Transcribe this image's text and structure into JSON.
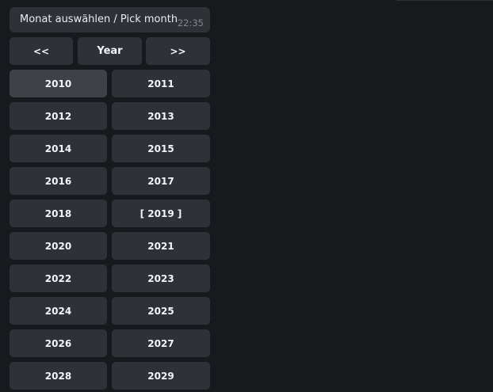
{
  "message": {
    "text": "Monat auswählen / Pick month",
    "time": "22:35"
  },
  "nav": {
    "prev": "<<",
    "title": "Year",
    "next": ">>"
  },
  "years": [
    "2010",
    "2011",
    "2012",
    "2013",
    "2014",
    "2015",
    "2016",
    "2017",
    "2018",
    "[ 2019 ]",
    "2020",
    "2021",
    "2022",
    "2023",
    "2024",
    "2025",
    "2026",
    "2027",
    "2028",
    "2029"
  ],
  "hovered": "2010"
}
